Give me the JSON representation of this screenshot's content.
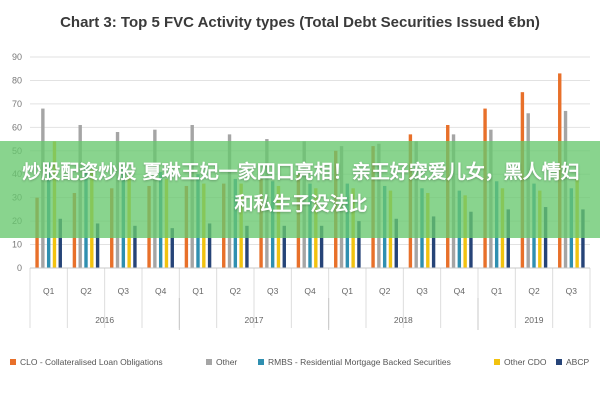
{
  "overlay": {
    "text": "炒股配资炒股 夏琳王妃一家四口亮相！亲王好宠爱儿女，黑人情妇和私生子没法比"
  },
  "chart_data": {
    "type": "bar",
    "title": "Chart 3: Top 5 FVC Activity types (Total Debt Securities Issued €bn)",
    "xlabel": "",
    "ylabel": "",
    "ylim": [
      0,
      90
    ],
    "yticks": [
      0,
      10,
      20,
      30,
      40,
      50,
      60,
      70,
      80,
      90
    ],
    "grid": true,
    "legend_position": "bottom",
    "categories": [
      "Q1",
      "Q2",
      "Q3",
      "Q4",
      "Q1",
      "Q2",
      "Q3",
      "Q4",
      "Q1",
      "Q2",
      "Q3",
      "Q4",
      "Q1",
      "Q2",
      "Q3"
    ],
    "groups": [
      {
        "label": "2016",
        "count": 4
      },
      {
        "label": "2017",
        "count": 4
      },
      {
        "label": "2018",
        "count": 4
      },
      {
        "label": "2019",
        "count": 3
      }
    ],
    "series": [
      {
        "name": "CLO - Collateralised Loan Obligations",
        "color": "#e8702a",
        "values": [
          30,
          32,
          34,
          35,
          35,
          36,
          38,
          40,
          50,
          52,
          57,
          61,
          68,
          75,
          83
        ]
      },
      {
        "name": "Other",
        "color": "#a5a5a5",
        "values": [
          68,
          61,
          58,
          59,
          61,
          57,
          55,
          54,
          52,
          53,
          54,
          57,
          59,
          66,
          67
        ]
      },
      {
        "name": "RMBS - Residential Mortgage Backed Securities",
        "color": "#2f8fb0",
        "values": [
          45,
          44,
          42,
          41,
          40,
          38,
          37,
          36,
          36,
          35,
          34,
          33,
          37,
          36,
          34
        ]
      },
      {
        "name": "Other CDO",
        "color": "#f2c20f",
        "values": [
          54,
          42,
          40,
          38,
          36,
          36,
          35,
          34,
          34,
          33,
          32,
          31,
          34,
          33,
          38
        ]
      },
      {
        "name": "ABCP",
        "color": "#264478",
        "values": [
          21,
          19,
          18,
          17,
          19,
          18,
          18,
          18,
          20,
          21,
          22,
          24,
          25,
          26,
          25
        ]
      }
    ]
  }
}
